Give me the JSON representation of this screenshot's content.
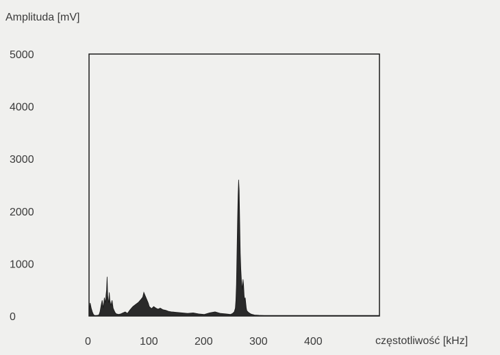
{
  "chart_data": {
    "type": "area",
    "title": "",
    "ylabel": "Amplituda [mV]",
    "xlabel": "częstotliwość [kHz]",
    "xlim": [
      0,
      530
    ],
    "ylim": [
      0,
      5000
    ],
    "grid": false,
    "x_ticks": [
      "0",
      "100",
      "200",
      "300",
      "400"
    ],
    "y_ticks": [
      "5000",
      "4000",
      "3000",
      "2000",
      "1000",
      "0"
    ],
    "fill_color": "#2a2a2a",
    "series": [
      {
        "x": [
          0,
          2,
          4,
          6,
          8,
          10,
          14,
          18,
          20,
          22,
          24,
          26,
          28,
          30,
          31,
          32,
          33,
          34,
          35,
          36,
          37,
          38,
          40,
          42,
          44,
          46,
          48,
          50,
          54,
          58,
          62,
          66,
          70,
          75,
          80,
          85,
          90,
          95,
          98,
          100,
          102,
          104,
          106,
          108,
          110,
          114,
          118,
          122,
          126,
          130,
          135,
          140,
          145,
          150,
          160,
          170,
          180,
          190,
          200,
          210,
          220,
          230,
          240,
          250,
          258,
          262,
          265,
          267,
          268,
          269,
          270,
          271,
          272,
          273,
          274,
          275,
          276,
          277,
          278,
          279,
          280,
          281,
          282,
          283,
          284,
          285,
          286,
          287,
          288,
          290,
          292,
          295,
          298,
          302,
          310,
          320,
          340,
          360,
          380,
          400,
          420,
          440,
          460,
          480,
          500,
          520,
          530
        ],
        "y": [
          100,
          250,
          150,
          80,
          30,
          10,
          10,
          20,
          80,
          200,
          300,
          150,
          350,
          250,
          400,
          500,
          750,
          400,
          300,
          250,
          450,
          300,
          200,
          300,
          150,
          100,
          60,
          40,
          30,
          40,
          60,
          80,
          50,
          120,
          180,
          220,
          260,
          320,
          360,
          450,
          400,
          350,
          300,
          250,
          180,
          140,
          180,
          150,
          130,
          150,
          120,
          110,
          90,
          80,
          70,
          60,
          50,
          60,
          40,
          30,
          60,
          80,
          50,
          40,
          30,
          50,
          80,
          150,
          300,
          600,
          1200,
          1800,
          2300,
          2600,
          2400,
          1800,
          1200,
          900,
          700,
          600,
          500,
          700,
          600,
          400,
          300,
          350,
          250,
          150,
          100,
          80,
          60,
          40,
          30,
          20,
          15,
          10,
          10,
          10,
          10,
          10,
          10,
          10,
          10,
          10,
          10,
          10,
          10
        ]
      }
    ]
  }
}
